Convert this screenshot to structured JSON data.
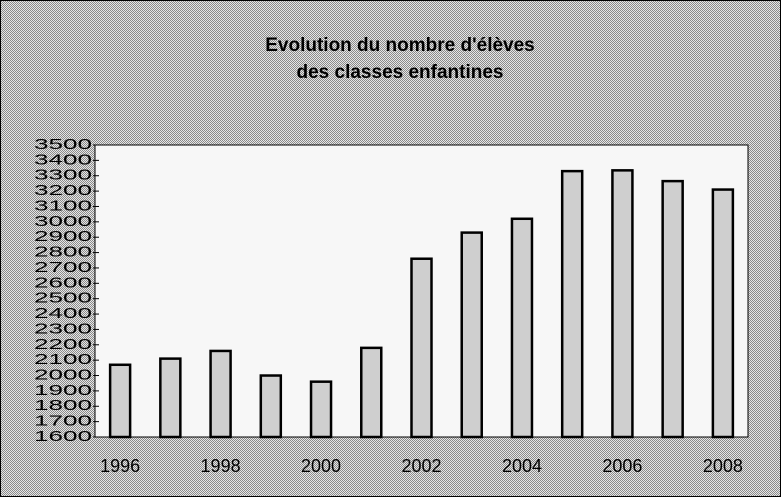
{
  "chart_data": {
    "type": "bar",
    "title": [
      "Evolution du nombre d'élèves",
      "des classes enfantines"
    ],
    "categories": [
      "1996",
      null,
      "1998",
      null,
      "2000",
      null,
      "2002",
      null,
      "2004",
      null,
      "2006",
      null,
      "2008"
    ],
    "values": [
      2070,
      2110,
      2160,
      2000,
      1960,
      2180,
      2760,
      2930,
      3020,
      3330,
      3335,
      3265,
      3210
    ],
    "color": "#cfcfcf",
    "ylim": [
      1600,
      3500
    ],
    "yticks": [
      1600,
      1700,
      1800,
      1900,
      2000,
      2100,
      2200,
      2300,
      2400,
      2500,
      2600,
      2700,
      2800,
      2900,
      3000,
      3100,
      3200,
      3300,
      3400,
      3500
    ],
    "grid": false
  }
}
